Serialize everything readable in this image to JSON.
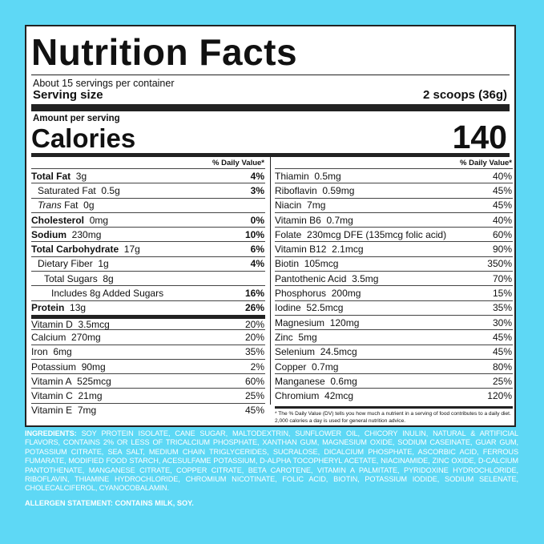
{
  "title": "Nutrition Facts",
  "servings_per_container": "About 15 servings per container",
  "serving_size_label": "Serving size",
  "serving_size_value": "2 scoops (36g)",
  "amount_per_serving": "Amount per serving",
  "calories_label": "Calories",
  "calories_value": "140",
  "dv_header": "% Daily Value*",
  "left_rows": {
    "total_fat": {
      "name": "Total Fat",
      "amount": "3g",
      "pct": "4%"
    },
    "saturated_fat": {
      "name": "Saturated Fat",
      "amount": "0.5g",
      "pct": "3%"
    },
    "trans_fat": {
      "name": "Trans",
      "suffix": "Fat",
      "amount": "0g"
    },
    "cholesterol": {
      "name": "Cholesterol",
      "amount": "0mg",
      "pct": "0%"
    },
    "sodium": {
      "name": "Sodium",
      "amount": "230mg",
      "pct": "10%"
    },
    "total_carb": {
      "name": "Total Carbohydrate",
      "amount": "17g",
      "pct": "6%"
    },
    "dietary_fiber": {
      "name": "Dietary Fiber",
      "amount": "1g",
      "pct": "4%"
    },
    "total_sugars": {
      "name": "Total Sugars",
      "amount": "8g"
    },
    "added_sugars": {
      "name": "Includes 8g Added Sugars",
      "pct": "16%"
    },
    "protein": {
      "name": "Protein",
      "amount": "13g",
      "pct": "26%"
    }
  },
  "left_vitamins": [
    {
      "name": "Vitamin D",
      "amount": "3.5mcg",
      "pct": "20%"
    },
    {
      "name": "Calcium",
      "amount": "270mg",
      "pct": "20%"
    },
    {
      "name": "Iron",
      "amount": "6mg",
      "pct": "35%"
    },
    {
      "name": "Potassium",
      "amount": "90mg",
      "pct": "2%"
    },
    {
      "name": "Vitamin A",
      "amount": "525mcg",
      "pct": "60%"
    },
    {
      "name": "Vitamin C",
      "amount": "21mg",
      "pct": "25%"
    },
    {
      "name": "Vitamin E",
      "amount": "7mg",
      "pct": "45%"
    }
  ],
  "right_rows": [
    {
      "name": "Thiamin",
      "amount": "0.5mg",
      "pct": "40%"
    },
    {
      "name": "Riboflavin",
      "amount": "0.59mg",
      "pct": "45%"
    },
    {
      "name": "Niacin",
      "amount": "7mg",
      "pct": "45%"
    },
    {
      "name": "Vitamin B6",
      "amount": "0.7mg",
      "pct": "40%"
    },
    {
      "name": "Folate",
      "amount": "230mcg  DFE (135mcg folic acid)",
      "pct": "60%"
    },
    {
      "name": "Vitamin B12",
      "amount": "2.1mcg",
      "pct": "90%"
    },
    {
      "name": "Biotin",
      "amount": "105mcg",
      "pct": "350%"
    },
    {
      "name": "Pantothenic Acid",
      "amount": "3.5mg",
      "pct": "70%"
    },
    {
      "name": "Phosphorus",
      "amount": "200mg",
      "pct": "15%"
    },
    {
      "name": "Iodine",
      "amount": "52.5mcg",
      "pct": "35%"
    },
    {
      "name": "Magnesium",
      "amount": "120mg",
      "pct": "30%"
    },
    {
      "name": "Zinc",
      "amount": "5mg",
      "pct": "45%"
    },
    {
      "name": "Selenium",
      "amount": "24.5mcg",
      "pct": "45%"
    },
    {
      "name": "Copper",
      "amount": "0.7mg",
      "pct": "80%"
    },
    {
      "name": "Manganese",
      "amount": "0.6mg",
      "pct": "25%"
    },
    {
      "name": "Chromium",
      "amount": "42mcg",
      "pct": "120%"
    }
  ],
  "footnote": "* The % Daily Value (DV) tells you how much a nutrient in a serving of food contributes to a daily diet. 2,000 calories a day is used for general nutrition advice.",
  "ingredients_label": "INGREDIENTS:",
  "ingredients_text": "SOY PROTEIN ISOLATE, CANE SUGAR, MALTODEXTRIN, SUNFLOWER OIL, CHICORY INULIN, NATURAL & ARTIFICIAL FLAVORS, CONTAINS 2% OR LESS OF TRICALCIUM PHOSPHATE, XANTHAN GUM, MAGNESIUM OXIDE, SODIUM CASEINATE, GUAR GUM, POTASSIUM CITRATE, SEA SALT, MEDIUM CHAIN TRIGLYCERIDES, SUCRALOSE, DICALCIUM PHOSPHATE, ASCORBIC ACID, FERROUS FUMARATE, MODIFIED FOOD STARCH, ACESULFAME POTASSIUM, D-ALPHA TOCOPHERYL ACETATE, NIACINAMIDE, ZINC OXIDE, D-CALCIUM PANTOTHENATE, MANGANESE CITRATE, COPPER CITRATE, BETA CAROTENE, VITAMIN A PALMITATE, PYRIDOXINE HYDROCHLORIDE, RIBOFLAVIN, THIAMINE HYDROCHLORIDE, CHROMIUM NICOTINATE, FOLIC ACID, BIOTIN, POTASSIUM IODIDE, SODIUM SELENATE, CHOLECALCIFEROL, CYANOCOBALAMIN.",
  "allergen_statement": "ALLERGEN STATEMENT: CONTAINS MILK, SOY."
}
